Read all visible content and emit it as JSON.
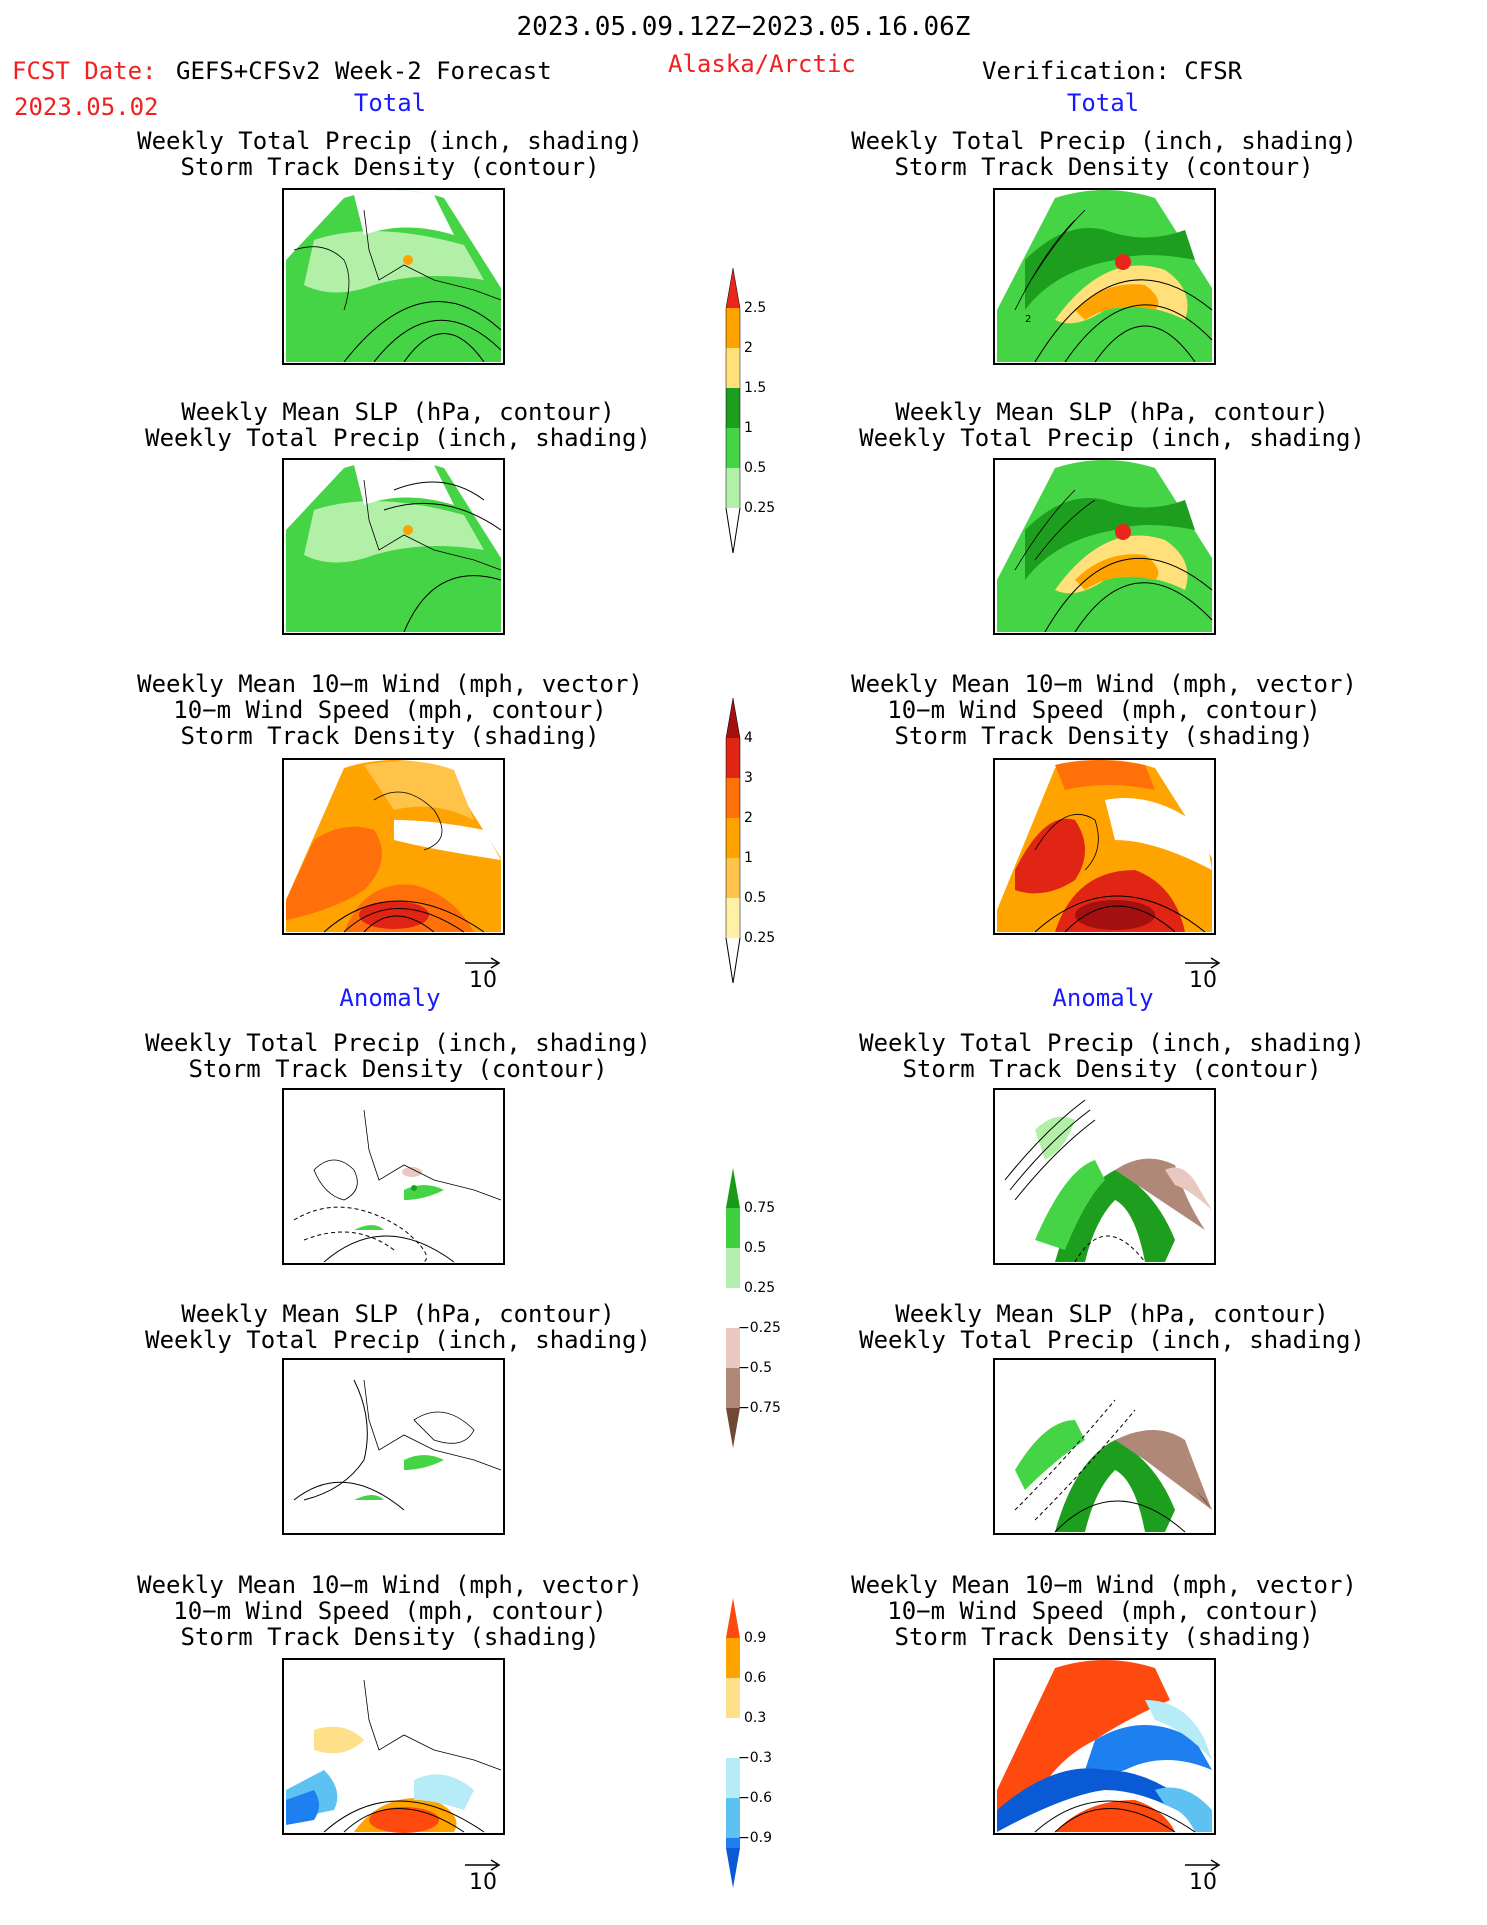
{
  "header": {
    "period": "2023.05.09.12Z−2023.05.16.06Z",
    "fcst_label": "FCST Date:",
    "model": "GEFS+CFSv2 Week-2 Forecast",
    "fcst_date": "2023.05.02",
    "region": "Alaska/Arctic",
    "verification": "Verification: CFSR"
  },
  "sections": {
    "total": "Total",
    "anomaly": "Anomaly"
  },
  "titles": {
    "precip_storm": [
      "Weekly Total Precip (inch, shading)",
      "Storm Track Density (contour)"
    ],
    "slp_precip": [
      "Weekly Mean SLP (hPa, contour)",
      "Weekly Total Precip (inch, shading)"
    ],
    "wind_storm": [
      "Weekly Mean 10−m Wind (mph, vector)",
      "10−m Wind Speed (mph, contour)",
      "Storm Track Density (shading)"
    ]
  },
  "colorbars": {
    "total_precip": {
      "labels": [
        "2.5",
        "2",
        "1.5",
        "1",
        "0.5",
        "0.25"
      ],
      "colors": [
        "#e8261c",
        "#ffa300",
        "#ffe07a",
        "#1e9e1e",
        "#45d445",
        "#b2f0a8"
      ]
    },
    "total_storm": {
      "labels": [
        "4",
        "3",
        "2",
        "1",
        "0.5",
        "0.25"
      ],
      "colors": [
        "#a4100f",
        "#e02514",
        "#ff6f0a",
        "#ffa300",
        "#ffc34a",
        "#fff0a6"
      ]
    },
    "anom_precip": {
      "labels": [
        "0.75",
        "0.5",
        "0.25",
        "−0.25",
        "−0.5",
        "−0.75"
      ],
      "colors_pos": [
        "#189a18",
        "#3fd03f",
        "#b4eeb0"
      ],
      "colors_neg": [
        "#e8c8c0",
        "#b08878",
        "#704834"
      ]
    },
    "anom_storm": {
      "labels": [
        "0.9",
        "0.6",
        "0.3",
        "−0.3",
        "−0.6",
        "−0.9"
      ],
      "colors_pos": [
        "#ff4a0f",
        "#ffa300",
        "#ffe08a"
      ],
      "colors_neg": [
        "#b6ecf7",
        "#5dc2f2",
        "#1e7ff0",
        "#0a5ad6"
      ]
    }
  },
  "vector_key": "10"
}
